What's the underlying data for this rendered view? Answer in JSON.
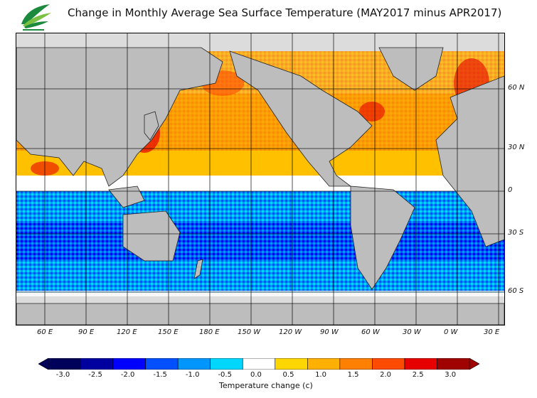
{
  "title": "Change in Monthly Average Sea Surface Temperature (MAY2017 minus APR2017)",
  "logo": {
    "icon": "observatory-leaf-logo",
    "colors": [
      "#1c8a3c",
      "#7ac143"
    ]
  },
  "map": {
    "ocean_mean_color": "#f08a1a",
    "land_color": "#bdbdbd",
    "ice_color": "#dcdcdc",
    "lat_labels": [
      "60 N",
      "30 N",
      "0",
      "30 S",
      "60 S"
    ],
    "lon_labels": [
      "60 E",
      "90 E",
      "120 E",
      "150 E",
      "180 E",
      "150 W",
      "120 W",
      "90 W",
      "60 W",
      "30 W",
      "0 W",
      "30 E"
    ]
  },
  "colorbar": {
    "ticks": [
      "-3.0",
      "-2.5",
      "-2.0",
      "-1.5",
      "-1.0",
      "-0.5",
      "0.0",
      "0.5",
      "1.0",
      "1.5",
      "2.0",
      "2.5",
      "3.0"
    ],
    "colors": [
      "#00005a",
      "#0000a0",
      "#0000ff",
      "#0050ff",
      "#0096ff",
      "#00d7ff",
      "#ffffff",
      "#ffd700",
      "#ffb000",
      "#ff8000",
      "#ff4b00",
      "#e60000",
      "#a00000"
    ],
    "label": "Temperature change  (c)"
  }
}
